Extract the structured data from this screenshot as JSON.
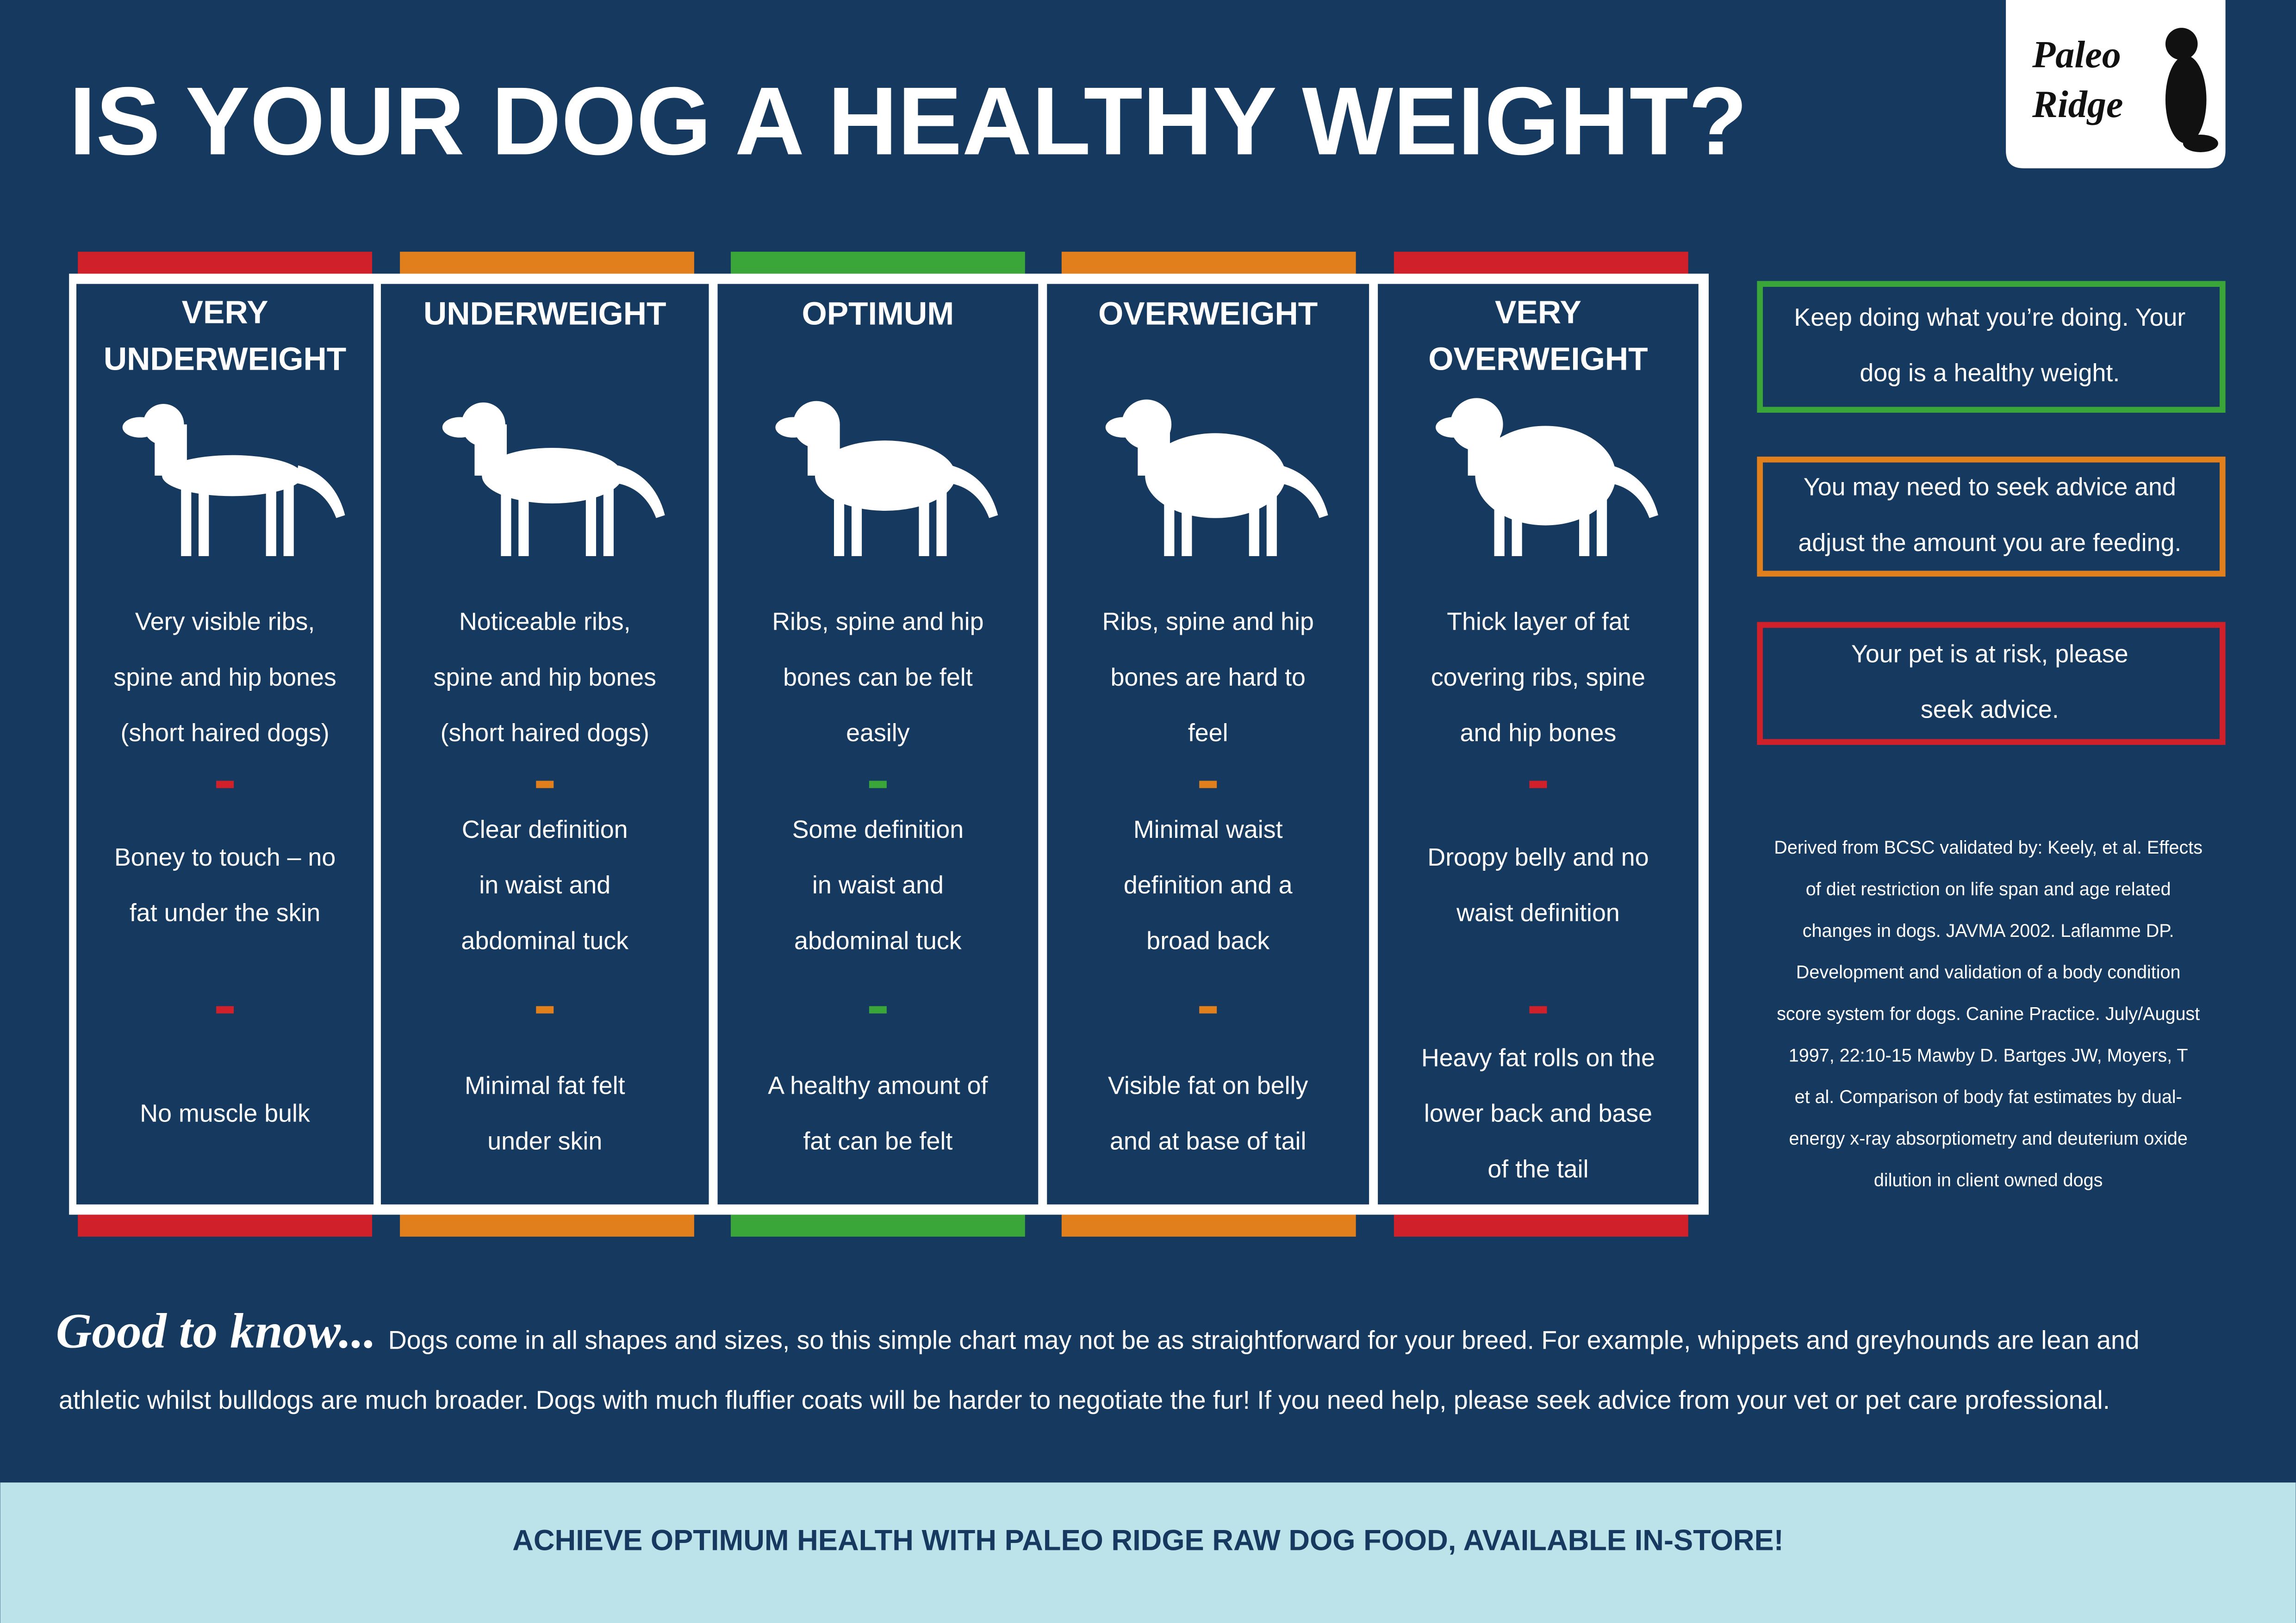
{
  "title": "IS YOUR DOG A HEALTHY WEIGHT?",
  "logo": [
    "Paleo",
    "Ridge"
  ],
  "columns": [
    {
      "heading": [
        "VERY",
        "UNDERWEIGHT"
      ],
      "color": "#d0202a",
      "descriptions": [
        [
          "Very visible ribs,",
          "spine and hip bones",
          "(short haired dogs)"
        ],
        [
          "Boney to touch – no",
          "fat under the skin"
        ],
        [
          "No muscle bulk"
        ]
      ]
    },
    {
      "heading": [
        "UNDERWEIGHT"
      ],
      "color": "#e07f1c",
      "descriptions": [
        [
          "Noticeable ribs,",
          "spine and hip bones",
          "(short haired dogs)"
        ],
        [
          "Clear definition",
          "in waist and",
          "abdominal tuck"
        ],
        [
          "Minimal fat felt",
          "under skin"
        ]
      ]
    },
    {
      "heading": [
        "OPTIMUM"
      ],
      "color": "#3aa63a",
      "descriptions": [
        [
          "Ribs, spine and hip",
          "bones can be felt",
          "easily"
        ],
        [
          "Some definition",
          "in waist and",
          "abdominal tuck"
        ],
        [
          "A healthy amount of",
          "fat can be felt"
        ]
      ]
    },
    {
      "heading": [
        "OVERWEIGHT"
      ],
      "color": "#e07f1c",
      "descriptions": [
        [
          "Ribs, spine and hip",
          "bones are hard to",
          "feel"
        ],
        [
          "Minimal waist",
          "definition and a",
          "broad back"
        ],
        [
          "Visible fat on belly",
          "and at base of tail"
        ]
      ]
    },
    {
      "heading": [
        "VERY",
        "OVERWEIGHT"
      ],
      "color": "#d0202a",
      "descriptions": [
        [
          "Thick layer of fat",
          "covering ribs, spine",
          "and hip bones"
        ],
        [
          "Droopy belly and no",
          "waist definition"
        ],
        [
          "Heavy fat rolls on the",
          "lower back and base",
          "of the tail"
        ]
      ]
    }
  ],
  "legend": [
    {
      "color": "#3aa63a",
      "lines": [
        "Keep doing what you’re doing. Your",
        "dog is a healthy weight."
      ]
    },
    {
      "color": "#e07f1c",
      "lines": [
        "You may need to seek advice and",
        "adjust the amount you are feeding."
      ]
    },
    {
      "color": "#d0202a",
      "lines": [
        "Your pet is at risk, please",
        "seek advice."
      ]
    }
  ],
  "citation": [
    "Derived from BCSC validated by: Keely, et al. Effects",
    "of diet restriction on life span and age related",
    "changes in dogs. JAVMA 2002. Laflamme DP.",
    "Development and validation of a body condition",
    "score system for dogs. Canine Practice. July/August",
    "1997, 22:10-15 Mawby D. Bartges JW, Moyers, T",
    "et al. Comparison of body fat estimates by dual-",
    "energy x-ray absorptiometry and deuterium oxide",
    "dilution in client owned dogs"
  ],
  "good_to_know": {
    "label": "Good to know...",
    "lines": [
      "Dogs come in all shapes and sizes, so this simple chart may not be as straightforward for your breed. For example, whippets and greyhounds are lean and",
      "athletic whilst bulldogs are much broader. Dogs with much fluffier coats will be harder to negotiate the fur! If you need help, please seek advice from your vet or pet care professional."
    ]
  },
  "footer": "ACHIEVE OPTIMUM HEALTH WITH PALEO RIDGE RAW DOG FOOD, AVAILABLE IN-STORE!"
}
